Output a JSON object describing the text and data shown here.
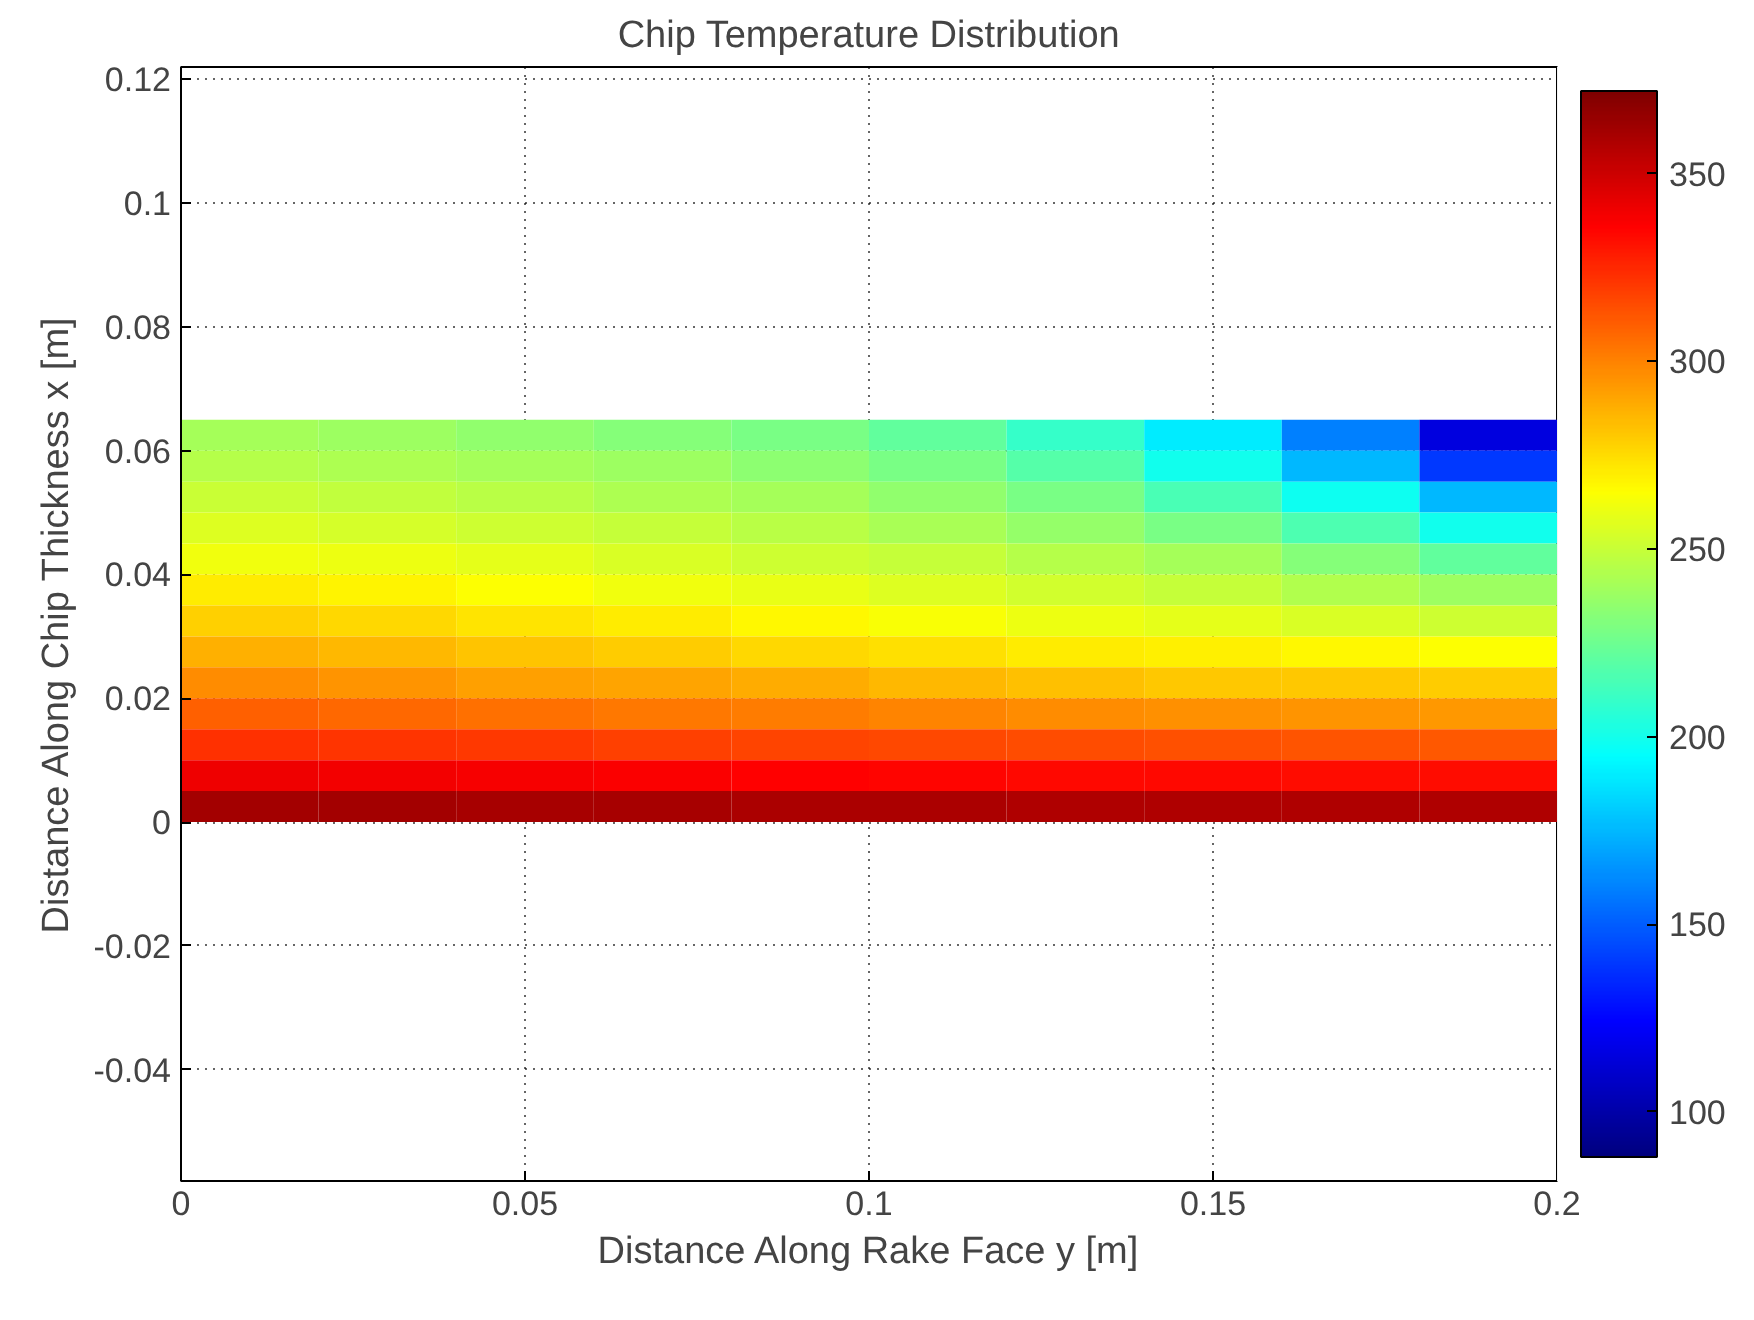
{
  "chart_data": {
    "type": "heatmap",
    "title": "Chip Temperature Distribution",
    "xlabel": "Distance Along Rake Face y [m]",
    "ylabel": "Distance Along Chip Thickness x [m]",
    "x": [
      0.01,
      0.03,
      0.05,
      0.07,
      0.09,
      0.11,
      0.13,
      0.15,
      0.17,
      0.19
    ],
    "y": [
      0.0625,
      0.0575,
      0.0525,
      0.0475,
      0.0425,
      0.0375,
      0.0325,
      0.0275,
      0.0225,
      0.0175,
      0.0125,
      0.0075,
      0.0025
    ],
    "cells": [
      [
        240,
        238,
        235,
        232,
        228,
        222,
        210,
        190,
        160,
        115
      ],
      [
        245,
        243,
        240,
        238,
        234,
        228,
        218,
        200,
        175,
        140
      ],
      [
        250,
        248,
        246,
        243,
        240,
        235,
        228,
        215,
        198,
        175
      ],
      [
        256,
        254,
        252,
        249,
        246,
        242,
        236,
        228,
        216,
        200
      ],
      [
        262,
        260,
        258,
        255,
        252,
        249,
        245,
        240,
        232,
        222
      ],
      [
        270,
        268,
        265,
        262,
        259,
        256,
        253,
        249,
        244,
        238
      ],
      [
        278,
        276,
        273,
        270,
        267,
        264,
        261,
        258,
        255,
        252
      ],
      [
        287,
        285,
        282,
        279,
        276,
        274,
        271,
        269,
        267,
        265
      ],
      [
        297,
        295,
        292,
        290,
        288,
        285,
        283,
        281,
        280,
        279
      ],
      [
        309,
        307,
        305,
        303,
        301,
        299,
        297,
        296,
        295,
        294
      ],
      [
        323,
        322,
        320,
        318,
        317,
        316,
        315,
        314,
        313,
        312
      ],
      [
        340,
        339,
        338,
        337,
        336,
        335,
        334,
        334,
        333,
        333
      ],
      [
        362,
        361,
        360,
        360,
        359,
        359,
        358,
        358,
        358,
        358
      ]
    ],
    "xlim": [
      0,
      0.2
    ],
    "xticks": [
      0,
      0.05,
      0.1,
      0.15,
      0.2
    ],
    "ylim": [
      -0.058,
      0.122
    ],
    "yticks": [
      -0.04,
      -0.02,
      0,
      0.02,
      0.04,
      0.06,
      0.08,
      0.1,
      0.12
    ],
    "clim": [
      88,
      372
    ],
    "cticks": [
      100,
      150,
      200,
      250,
      300,
      350
    ],
    "grid": true
  }
}
